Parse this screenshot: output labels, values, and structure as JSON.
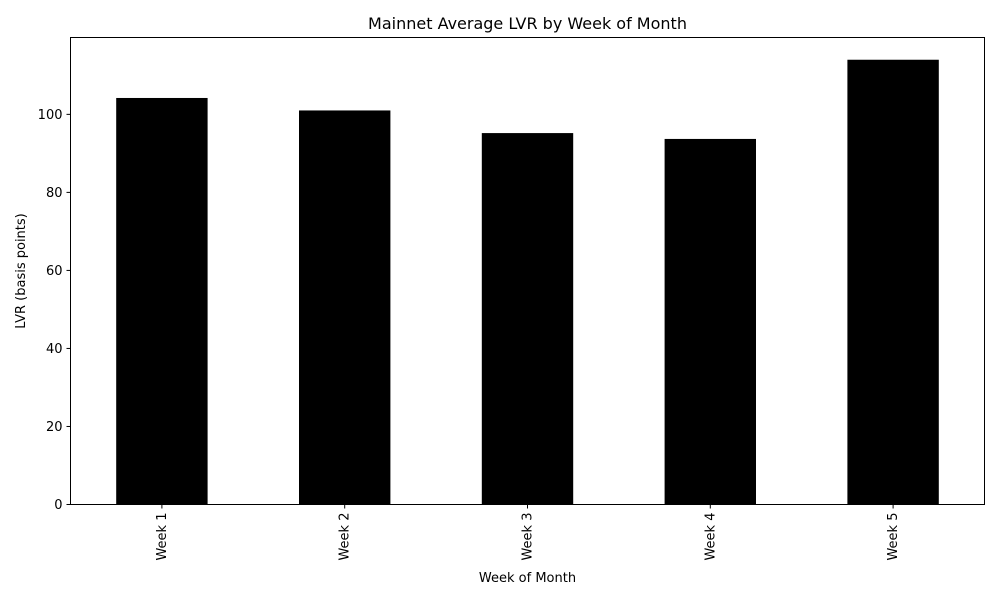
{
  "chart_data": {
    "type": "bar",
    "title": "Mainnet Average LVR by Week of Month",
    "xlabel": "Week of Month",
    "ylabel": "LVR (basis points)",
    "categories": [
      "Week 1",
      "Week 2",
      "Week 3",
      "Week 4",
      "Week 5"
    ],
    "values": [
      104.2,
      101.0,
      95.2,
      93.7,
      114.0
    ],
    "ylim": [
      0,
      119.7
    ],
    "yticks": [
      0,
      20,
      40,
      60,
      80,
      100
    ],
    "bar_color": "#000000",
    "grid": false,
    "legend": "none"
  }
}
